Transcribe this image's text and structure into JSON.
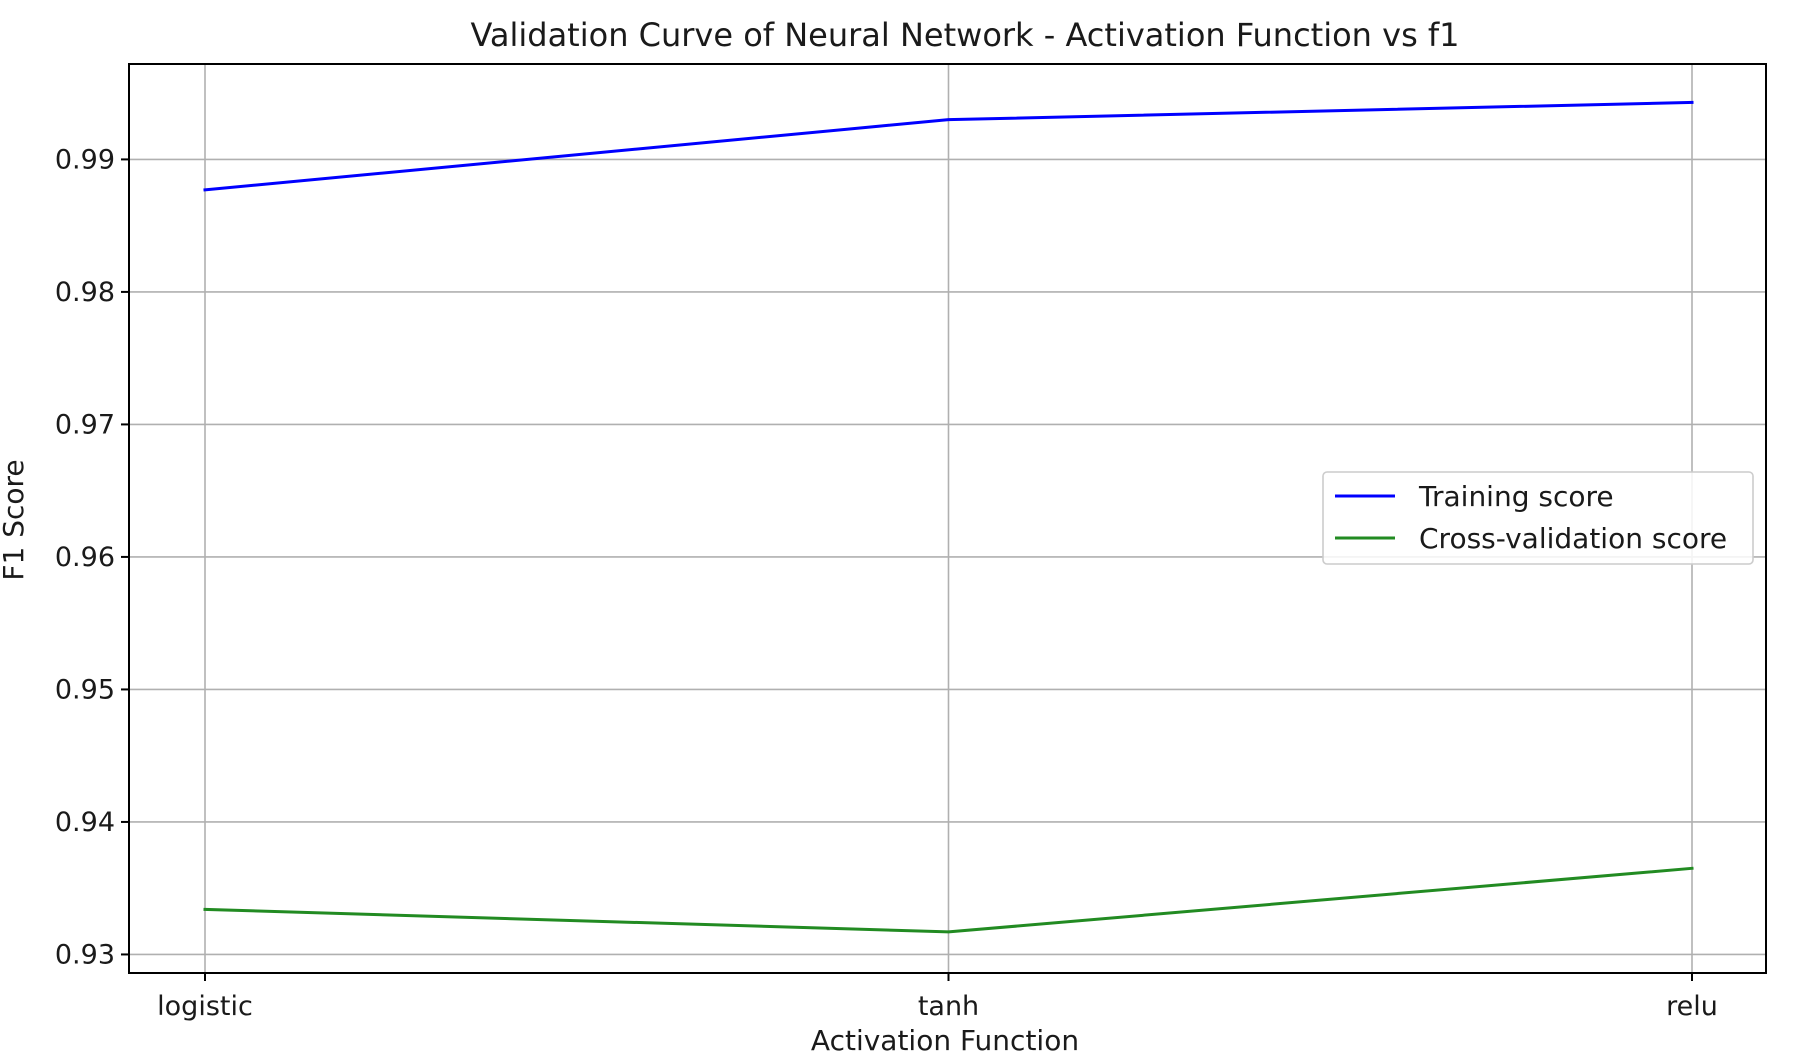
{
  "chart_data": {
    "type": "line",
    "title": "Validation Curve of Neural Network - Activation Function vs f1",
    "xlabel": "Activation Function",
    "ylabel": "F1 Score",
    "categories": [
      "logistic",
      "tanh",
      "relu"
    ],
    "ylim": [
      0.9286,
      0.9972
    ],
    "yticks": [
      0.93,
      0.94,
      0.95,
      0.96,
      0.97,
      0.98,
      0.99
    ],
    "ytick_labels": [
      "0.93",
      "0.94",
      "0.95",
      "0.96",
      "0.97",
      "0.98",
      "0.99"
    ],
    "grid": true,
    "legend_position": "center-right",
    "series": [
      {
        "name": "Training score",
        "color": "#0000ff",
        "values": [
          0.9877,
          0.993,
          0.9943
        ]
      },
      {
        "name": "Cross-validation score",
        "color": "#228b22",
        "values": [
          0.9334,
          0.9317,
          0.9365
        ]
      }
    ]
  }
}
